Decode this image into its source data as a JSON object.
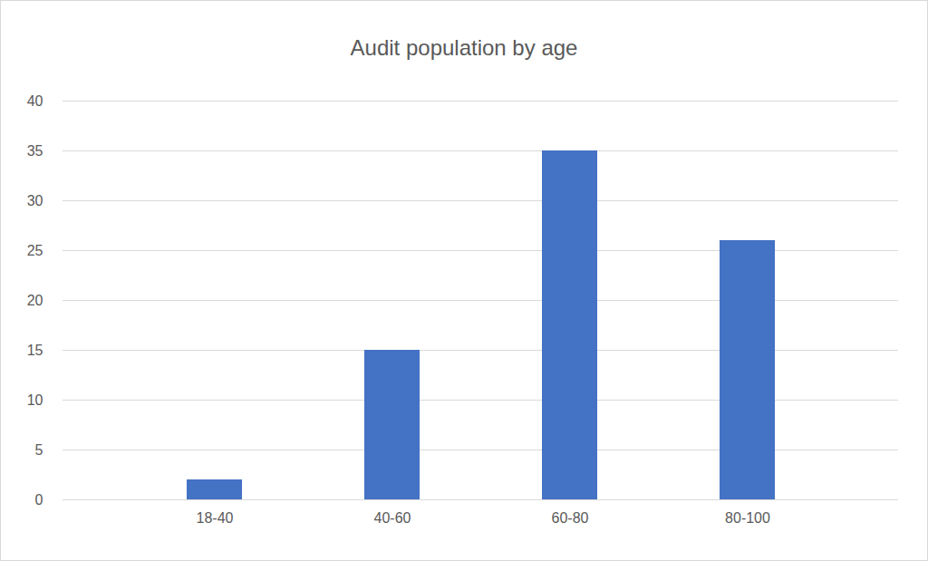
{
  "chart_data": {
    "type": "bar",
    "title": "Audit population by age",
    "categories": [
      "18-40",
      "40-60",
      "60-80",
      "80-100"
    ],
    "values": [
      2,
      15,
      35,
      26
    ],
    "color": "#4472c4",
    "ylim": [
      0,
      40
    ],
    "yticks": [
      0,
      5,
      10,
      15,
      20,
      25,
      30,
      35,
      40
    ],
    "grid": true
  }
}
